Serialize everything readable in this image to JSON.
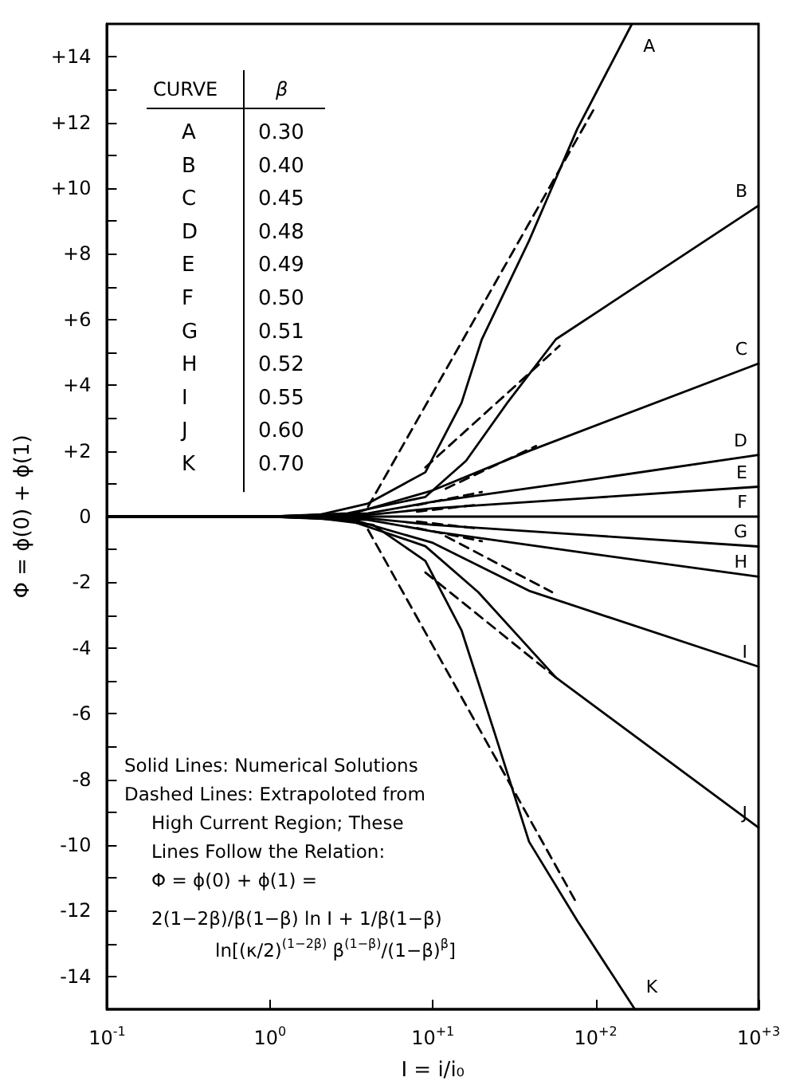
{
  "chart_data": {
    "type": "line",
    "xlabel": "I = i/i₀",
    "ylabel": "Φ = ϕ(0) + ϕ(1)",
    "log": "x",
    "marker": "none",
    "line_style": "solid",
    "grid": false,
    "xlim": [
      0.1,
      1000
    ],
    "xticks": [
      {
        "value": 0.1,
        "label": "10$^{-1}$"
      },
      {
        "value": 1,
        "label": "10$^{0}$"
      },
      {
        "value": 10,
        "label": "10$^{+1}$"
      },
      {
        "value": 100,
        "label": "10$^{+2}$"
      },
      {
        "value": 1000,
        "label": "10$^{+3}$"
      }
    ],
    "ylim": [
      -15,
      15
    ],
    "yticks": [
      {
        "value": -14,
        "label": "-14"
      },
      {
        "value": -13,
        "label": null
      },
      {
        "value": -12,
        "label": "-12"
      },
      {
        "value": -11,
        "label": null
      },
      {
        "value": -10,
        "label": "-10"
      },
      {
        "value": -9,
        "label": null
      },
      {
        "value": -8,
        "label": "-8"
      },
      {
        "value": -7,
        "label": null
      },
      {
        "value": -6,
        "label": "-6"
      },
      {
        "value": -5,
        "label": null
      },
      {
        "value": -4,
        "label": "-4"
      },
      {
        "value": -3,
        "label": null
      },
      {
        "value": -2,
        "label": "-2"
      },
      {
        "value": -1,
        "label": null
      },
      0,
      {
        "value": 1,
        "label": null
      },
      {
        "value": 2,
        "label": "+2"
      },
      {
        "value": 3,
        "label": null
      },
      {
        "value": 4,
        "label": "+4"
      },
      {
        "value": 5,
        "label": null
      },
      {
        "value": 6,
        "label": "+6"
      },
      {
        "value": 7,
        "label": null
      },
      {
        "value": 8,
        "label": "+8"
      },
      {
        "value": 9,
        "label": null
      },
      {
        "value": 10,
        "label": "+10"
      },
      {
        "value": 11,
        "label": null
      },
      {
        "value": 12,
        "label": "+12"
      },
      {
        "value": 13,
        "label": null
      },
      {
        "value": 14,
        "label": "+14"
      }
    ],
    "series": [
      {
        "name": "A",
        "color": "#000000",
        "x": [
          0.1,
          1,
          2,
          4,
          9,
          15,
          20,
          39,
          77,
          167
        ],
        "values": [
          0,
          0,
          0.05,
          0.4,
          1.35,
          3.46,
          5.4,
          8.4,
          11.8,
          15
        ]
      },
      {
        "name": "B",
        "color": "#000000",
        "x": [
          0.1,
          1,
          3,
          9,
          16,
          29,
          57,
          1000
        ],
        "values": [
          0,
          0,
          0.1,
          0.6,
          1.7,
          3.5,
          5.4,
          9.47
        ]
      },
      {
        "name": "C",
        "color": "#000000",
        "x": [
          0.1,
          1,
          3,
          10,
          39,
          1000
        ],
        "values": [
          0,
          0,
          0.05,
          0.8,
          2.0,
          4.66
        ]
      },
      {
        "name": "D",
        "color": "#000000",
        "x": [
          0.1,
          1,
          4,
          10,
          100,
          1000
        ],
        "values": [
          0,
          0,
          0.1,
          0.45,
          1.15,
          1.88
        ]
      },
      {
        "name": "E",
        "color": "#000000",
        "x": [
          0.1,
          1,
          4,
          10,
          100,
          1000
        ],
        "values": [
          0,
          0,
          0.05,
          0.25,
          0.58,
          0.91
        ]
      },
      {
        "name": "F",
        "color": "#000000",
        "x": [
          0.1,
          1000
        ],
        "values": [
          0,
          0
        ]
      },
      {
        "name": "G",
        "color": "#000000",
        "x": [
          0.1,
          1,
          4,
          10,
          100,
          1000
        ],
        "values": [
          0,
          0,
          -0.05,
          -0.25,
          -0.58,
          -0.91
        ]
      },
      {
        "name": "H",
        "color": "#000000",
        "x": [
          0.1,
          1,
          4,
          10,
          100,
          1000
        ],
        "values": [
          0,
          0,
          -0.1,
          -0.45,
          -1.15,
          -1.83
        ]
      },
      {
        "name": "I",
        "color": "#000000",
        "x": [
          0.1,
          1,
          3,
          10,
          39,
          1000
        ],
        "values": [
          0,
          0,
          -0.05,
          -0.8,
          -2.26,
          -4.57
        ]
      },
      {
        "name": "J",
        "color": "#000000",
        "x": [
          0.1,
          1,
          3,
          9,
          19,
          57,
          1000
        ],
        "values": [
          0,
          0,
          -0.1,
          -0.9,
          -2.3,
          -4.9,
          -9.47
        ]
      },
      {
        "name": "K",
        "color": "#000000",
        "x": [
          0.1,
          1,
          2,
          4.3,
          9,
          15,
          24,
          39,
          77,
          174
        ],
        "values": [
          0,
          0,
          -0.05,
          -0.25,
          -1.35,
          -3.46,
          -6.6,
          -9.9,
          -12.3,
          -15
        ]
      },
      {
        "color": "#000000",
        "line_style": "dashed",
        "x": [
          4,
          100
        ],
        "values": [
          0.3,
          12.5
        ]
      },
      {
        "color": "#000000",
        "line_style": "dashed",
        "x": [
          9,
          60
        ],
        "values": [
          1.5,
          5.2
        ]
      },
      {
        "color": "#000000",
        "line_style": "dashed",
        "x": [
          12,
          43
        ],
        "values": [
          0.85,
          2.15
        ]
      },
      {
        "color": "#000000",
        "line_style": "dashed",
        "x": [
          8,
          20
        ],
        "values": [
          0.35,
          0.75
        ]
      },
      {
        "color": "#000000",
        "line_style": "dashed",
        "x": [
          8,
          18
        ],
        "values": [
          0.15,
          0.35
        ]
      },
      {
        "color": "#000000",
        "line_style": "dashed",
        "x": [
          8,
          18
        ],
        "values": [
          -0.15,
          -0.35
        ]
      },
      {
        "color": "#000000",
        "line_style": "dashed",
        "x": [
          8,
          20
        ],
        "values": [
          -0.35,
          -0.75
        ]
      },
      {
        "color": "#000000",
        "line_style": "dashed",
        "x": [
          12,
          54
        ],
        "values": [
          -0.6,
          -2.3
        ]
      },
      {
        "color": "#000000",
        "line_style": "dashed",
        "x": [
          9,
          57
        ],
        "values": [
          -1.7,
          -4.9
        ]
      },
      {
        "color": "#000000",
        "line_style": "dashed",
        "x": [
          4,
          77
        ],
        "values": [
          -0.4,
          -11.8
        ]
      }
    ],
    "annotations": [
      "CURVE",
      "β",
      "A",
      "0.30",
      "B",
      "0.40",
      "C",
      "0.45",
      "D",
      "0.48",
      "E",
      "0.49",
      "F",
      "0.50",
      "G",
      "0.51",
      "H",
      "0.52",
      "I",
      "0.55",
      "J",
      "0.60",
      "K",
      "0.70",
      "Solid Lines: Numerical Solutions",
      "Dashed Lines: Extrapoloted from",
      "High Current Region; These",
      "Lines Follow the Relation:",
      "Φ = ϕ(0) + ϕ(1) =",
      "2(1−2β)/β(1−β) ln I + 1/β(1−β)",
      "ln[(κ/2)$^{(1−2β)}$ β$^{(1−β)}$/(1−β)$^{β}$]"
    ]
  }
}
